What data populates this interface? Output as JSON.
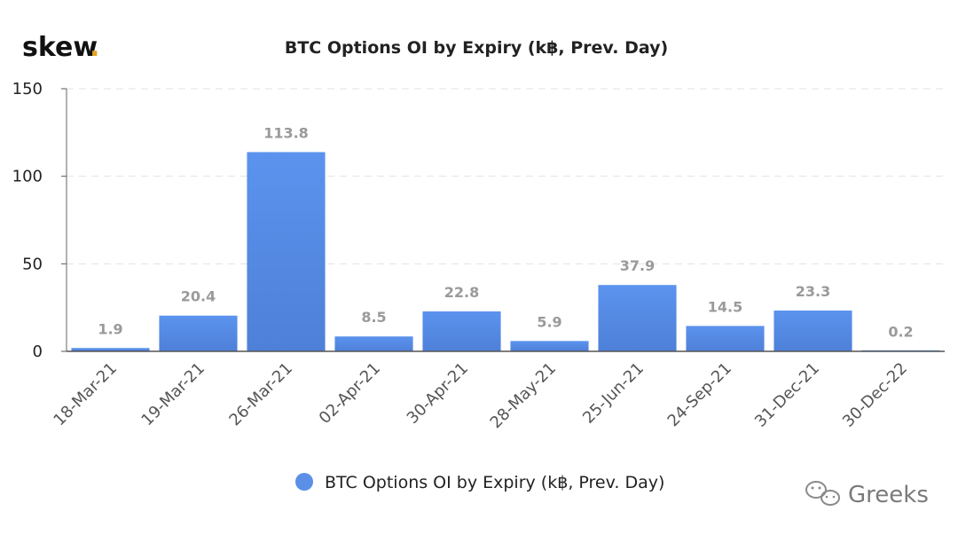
{
  "brand": {
    "name": "skew",
    "dot": ".",
    "dot_color": "#e3a321"
  },
  "watermark": {
    "text": "Greeks",
    "icon": "wechat-icon"
  },
  "chart_data": {
    "type": "bar",
    "title": "BTC Options OI by Expiry (k฿, Prev. Day)",
    "categories": [
      "18-Mar-21",
      "19-Mar-21",
      "26-Mar-21",
      "02-Apr-21",
      "30-Apr-21",
      "28-May-21",
      "25-Jun-21",
      "24-Sep-21",
      "31-Dec-21",
      "30-Dec-22"
    ],
    "series": [
      {
        "name": "BTC Options OI by Expiry (k฿, Prev. Day)",
        "values": [
          1.9,
          20.4,
          113.8,
          8.5,
          22.8,
          5.9,
          37.9,
          14.5,
          23.3,
          0.2
        ],
        "color": "#5b8fe8"
      }
    ],
    "data_labels": [
      "1.9",
      "20.4",
      "113.8",
      "8.5",
      "22.8",
      "5.9",
      "37.9",
      "14.5",
      "23.3",
      "0.2"
    ],
    "yticks": [
      0,
      50,
      100,
      150
    ],
    "ylim": [
      0,
      150
    ],
    "xlabel": "",
    "ylabel": "",
    "grid": true,
    "legend": "bottom"
  }
}
